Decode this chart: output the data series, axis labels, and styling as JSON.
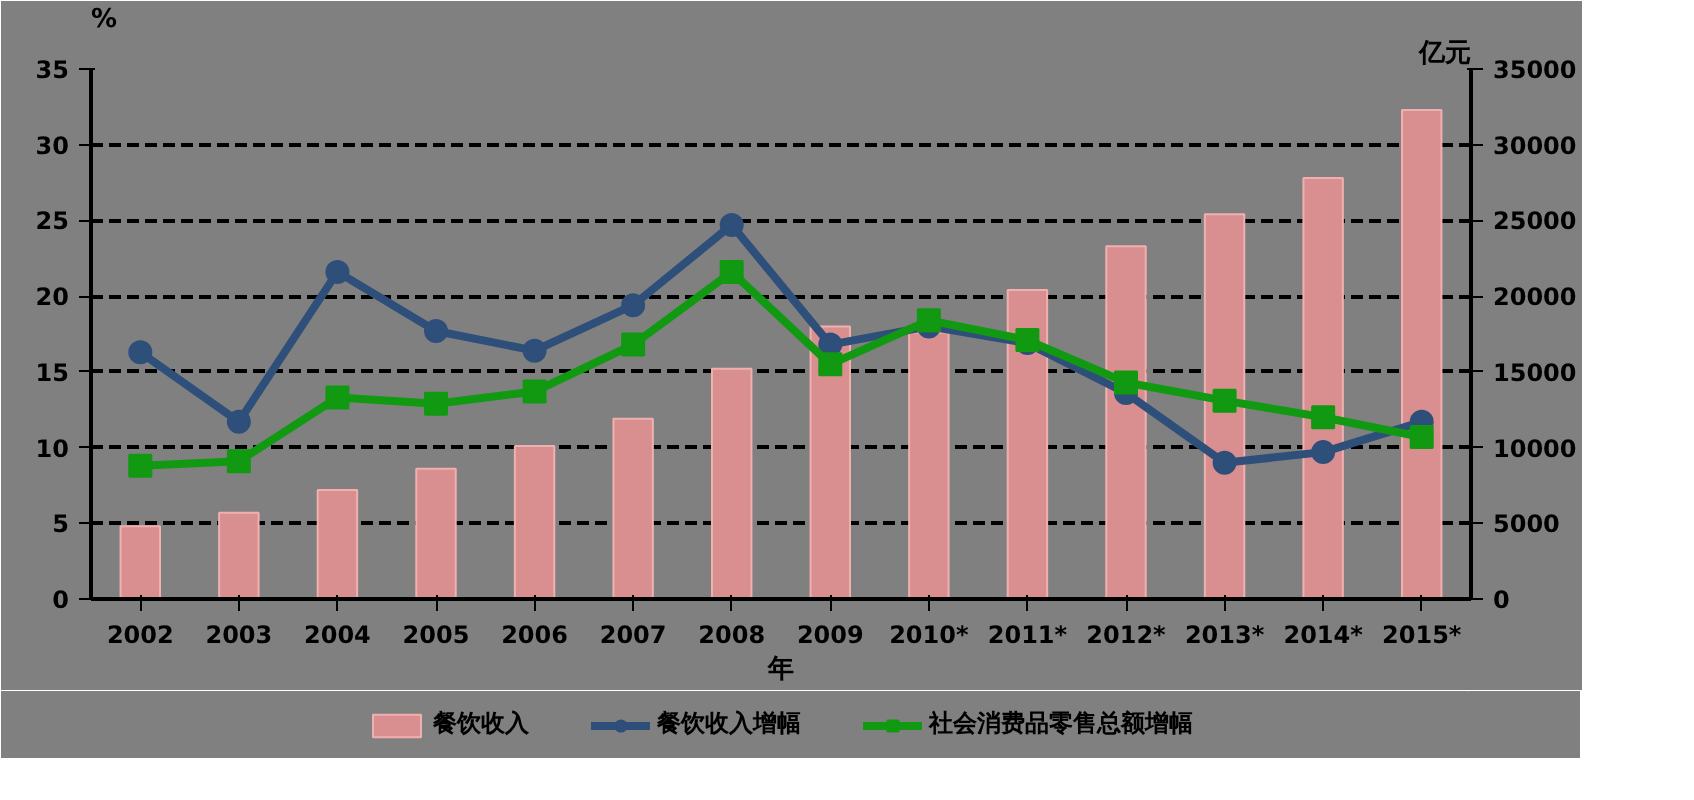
{
  "chart_data": {
    "type": "bar",
    "ylabel": "%",
    "y2label": "亿元",
    "xlabel": "年",
    "categories": [
      "2002",
      "2003",
      "2004",
      "2005",
      "2006",
      "2007",
      "2008",
      "2009",
      "2010*",
      "2011*",
      "2012*",
      "2013*",
      "2014*",
      "2015*"
    ],
    "series": [
      {
        "name": "餐饮收入",
        "axis": "y2",
        "color": "#d98f8f",
        "values": [
          4800,
          5700,
          7200,
          8600,
          10100,
          11900,
          15200,
          18000,
          17600,
          20400,
          23300,
          25400,
          27800,
          32300
        ]
      },
      {
        "name": "餐饮收入增幅",
        "type": "line",
        "marker": "circle",
        "color": "#2e4f7a",
        "values": [
          16.3,
          11.7,
          21.6,
          17.7,
          16.4,
          19.4,
          24.7,
          16.8,
          18.0,
          16.9,
          13.6,
          9.0,
          9.7,
          11.7
        ]
      },
      {
        "name": "社会消费品零售总额增幅",
        "type": "line",
        "marker": "square",
        "color": "#119911",
        "values": [
          8.8,
          9.1,
          13.3,
          12.9,
          13.7,
          16.8,
          21.6,
          15.5,
          18.4,
          17.1,
          14.3,
          13.1,
          12.0,
          10.7
        ]
      }
    ],
    "ylim": [
      0,
      35
    ],
    "yticks": [
      0,
      5,
      10,
      15,
      20,
      25,
      30,
      35
    ],
    "y2lim": [
      0,
      35000
    ],
    "y2ticks": [
      0,
      5000,
      10000,
      15000,
      20000,
      25000,
      30000,
      35000
    ],
    "grid": "y",
    "legend": "bottom"
  }
}
